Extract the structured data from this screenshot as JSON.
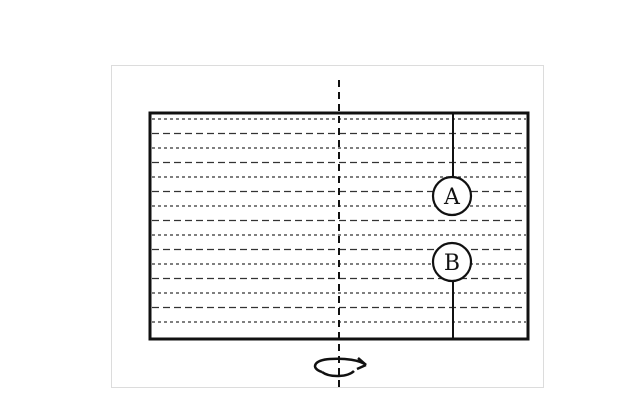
{
  "diagram": {
    "balls": [
      {
        "label": "A"
      },
      {
        "label": "B"
      }
    ]
  }
}
